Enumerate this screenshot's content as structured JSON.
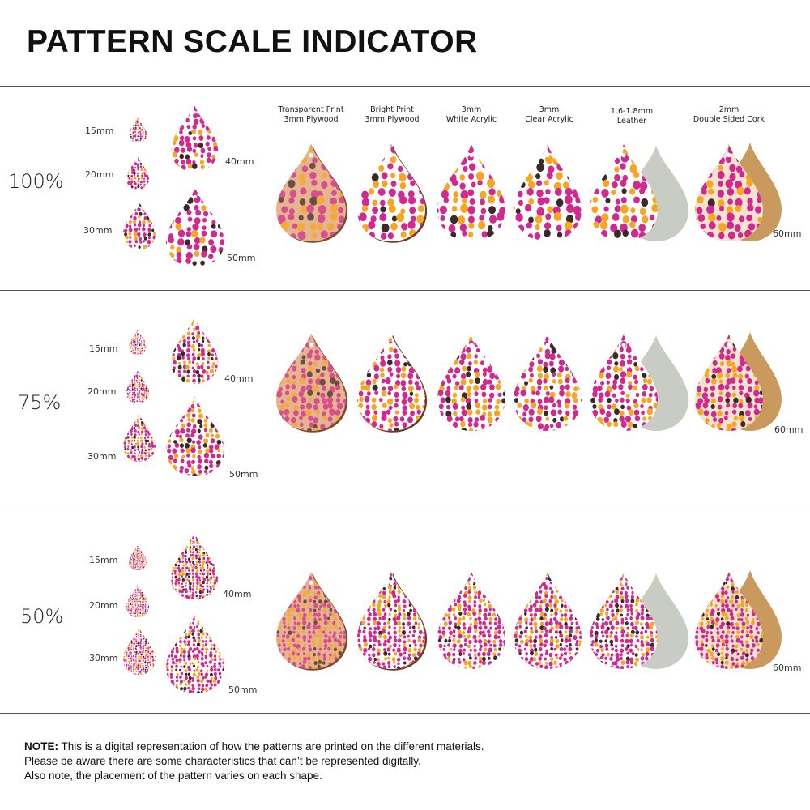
{
  "title": "PATTERN SCALE INDICATOR",
  "materials": [
    {
      "line1": "Transparent Print",
      "line2": "3mm Plywood"
    },
    {
      "line1": "Bright Print",
      "line2": "3mm Plywood"
    },
    {
      "line1": "3mm",
      "line2": "White Acrylic"
    },
    {
      "line1": "3mm",
      "line2": "Clear Acrylic"
    },
    {
      "line1": "1.6-1.8mm",
      "line2": "Leather"
    },
    {
      "line1": "2mm",
      "line2": "Double Sided Cork"
    }
  ],
  "sections": [
    {
      "scale": "100%",
      "sizes": [
        "15mm",
        "20mm",
        "30mm",
        "40mm",
        "50mm"
      ],
      "material_size": "60mm"
    },
    {
      "scale": "75%",
      "sizes": [
        "15mm",
        "20mm",
        "30mm",
        "40mm",
        "50mm"
      ],
      "material_size": "60mm"
    },
    {
      "scale": "50%",
      "sizes": [
        "15mm",
        "20mm",
        "30mm",
        "40mm",
        "50mm"
      ],
      "material_size": "60mm"
    }
  ],
  "note": {
    "bold": "NOTE:",
    "line1": " This is a digital representation of how the patterns are printed on the different materials.",
    "line2": "Please be aware there are some characteristics that can’t be represented digitally.",
    "line3": "Also note, the placement of the pattern varies on each shape."
  },
  "colors": {
    "magenta": "#d12a8f",
    "orange": "#f5a623",
    "dark": "#3a2a2a",
    "white": "#ffffff",
    "plywood": "#c98a5a",
    "leather": "#c9ccc4",
    "cork": "#c9995e",
    "divider": "#555555"
  }
}
